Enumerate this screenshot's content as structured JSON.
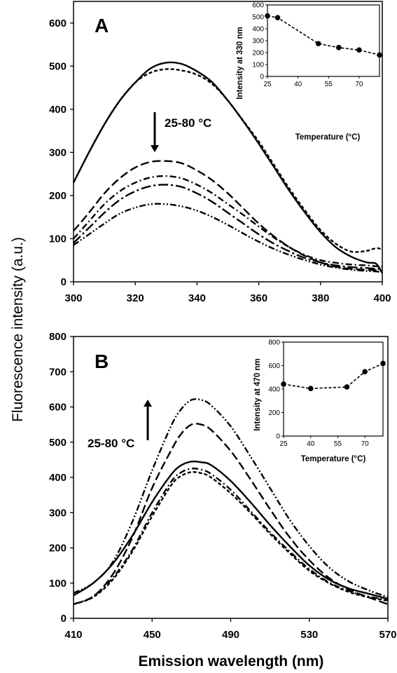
{
  "figure": {
    "ylabel": "Fluorescence intensity (a.u.)",
    "xlabel": "Emission wavelength (nm)"
  },
  "chart_data": [
    {
      "type": "line",
      "panel": "A",
      "annotation": "25-80 °C",
      "arrow_direction": "down",
      "xlim": [
        300,
        400
      ],
      "ylim": [
        0,
        650
      ],
      "xticks": [
        300,
        320,
        340,
        360,
        380,
        400
      ],
      "yticks": [
        0,
        100,
        200,
        300,
        400,
        500,
        600
      ],
      "series": [
        {
          "style": "solid",
          "x": [
            300,
            305,
            310,
            315,
            320,
            325,
            330,
            335,
            340,
            345,
            350,
            355,
            360,
            365,
            370,
            375,
            380,
            385,
            390,
            395,
            398,
            400
          ],
          "values": [
            230,
            300,
            365,
            420,
            462,
            495,
            508,
            505,
            488,
            462,
            420,
            372,
            320,
            265,
            210,
            160,
            115,
            80,
            58,
            45,
            42,
            20
          ]
        },
        {
          "style": "short-dash",
          "x": [
            300,
            305,
            310,
            315,
            320,
            325,
            330,
            335,
            340,
            345,
            350,
            355,
            360,
            365,
            370,
            375,
            380,
            385,
            390,
            395,
            398,
            400
          ],
          "values": [
            230,
            300,
            365,
            420,
            462,
            485,
            493,
            490,
            480,
            458,
            420,
            373,
            325,
            270,
            215,
            165,
            120,
            88,
            70,
            72,
            78,
            75
          ]
        },
        {
          "style": "long-dash",
          "x": [
            300,
            305,
            310,
            315,
            320,
            325,
            330,
            335,
            340,
            345,
            350,
            355,
            360,
            365,
            370,
            375,
            380,
            385,
            390,
            395,
            398,
            400
          ],
          "values": [
            118,
            160,
            205,
            240,
            265,
            278,
            280,
            275,
            258,
            235,
            205,
            170,
            135,
            105,
            80,
            60,
            45,
            35,
            30,
            28,
            27,
            25
          ]
        },
        {
          "style": "dash-dot",
          "x": [
            300,
            305,
            310,
            315,
            320,
            325,
            330,
            335,
            340,
            345,
            350,
            355,
            360,
            365,
            370,
            375,
            380,
            385,
            390,
            395,
            398,
            400
          ],
          "values": [
            100,
            140,
            180,
            210,
            230,
            242,
            245,
            240,
            225,
            205,
            180,
            155,
            128,
            102,
            80,
            62,
            50,
            44,
            40,
            38,
            36,
            35
          ]
        },
        {
          "style": "long-dash-dot",
          "x": [
            300,
            305,
            310,
            315,
            320,
            325,
            330,
            335,
            340,
            345,
            350,
            355,
            360,
            365,
            370,
            375,
            380,
            385,
            390,
            395,
            398,
            400
          ],
          "values": [
            90,
            125,
            160,
            190,
            210,
            222,
            225,
            220,
            205,
            185,
            160,
            135,
            110,
            88,
            70,
            55,
            45,
            38,
            34,
            32,
            30,
            30
          ]
        },
        {
          "style": "dash-dot-dot",
          "x": [
            300,
            305,
            310,
            315,
            320,
            325,
            330,
            335,
            340,
            345,
            350,
            355,
            360,
            365,
            370,
            375,
            380,
            385,
            390,
            395,
            398,
            400
          ],
          "values": [
            85,
            110,
            135,
            158,
            172,
            180,
            180,
            175,
            165,
            150,
            132,
            112,
            93,
            76,
            62,
            50,
            40,
            33,
            28,
            25,
            24,
            22
          ]
        }
      ],
      "inset": {
        "type": "line",
        "ylabel": "Intensity at 330 nm",
        "xlabel": "Temperature (°C)",
        "xlim": [
          25,
          80
        ],
        "ylim": [
          0,
          600
        ],
        "xticks": [
          25,
          40,
          55,
          70
        ],
        "yticks": [
          0,
          100,
          200,
          300,
          400,
          500,
          600
        ],
        "x": [
          25,
          30,
          50,
          60,
          70,
          80
        ],
        "values": [
          508,
          493,
          275,
          242,
          222,
          180
        ]
      }
    },
    {
      "type": "line",
      "panel": "B",
      "annotation": "25-80 °C",
      "arrow_direction": "up",
      "xlim": [
        410,
        570
      ],
      "ylim": [
        0,
        800
      ],
      "xticks": [
        410,
        450,
        490,
        530,
        570
      ],
      "yticks": [
        0,
        100,
        200,
        300,
        400,
        500,
        600,
        700,
        800
      ],
      "series": [
        {
          "style": "solid",
          "x": [
            410,
            420,
            430,
            440,
            450,
            460,
            465,
            470,
            475,
            480,
            490,
            500,
            510,
            520,
            530,
            540,
            550,
            560,
            570
          ],
          "values": [
            65,
            100,
            155,
            235,
            330,
            410,
            435,
            445,
            443,
            435,
            390,
            330,
            265,
            205,
            150,
            110,
            85,
            70,
            55
          ]
        },
        {
          "style": "short-dash",
          "x": [
            410,
            420,
            430,
            440,
            450,
            460,
            465,
            470,
            475,
            480,
            490,
            500,
            510,
            520,
            530,
            540,
            550,
            560,
            570
          ],
          "values": [
            40,
            60,
            110,
            190,
            290,
            380,
            405,
            415,
            412,
            400,
            355,
            300,
            240,
            185,
            135,
            100,
            75,
            60,
            50
          ]
        },
        {
          "style": "dash-dot",
          "x": [
            410,
            420,
            430,
            440,
            450,
            460,
            465,
            470,
            475,
            480,
            490,
            500,
            510,
            520,
            530,
            540,
            550,
            560,
            570
          ],
          "values": [
            40,
            62,
            115,
            195,
            300,
            390,
            415,
            425,
            422,
            410,
            365,
            305,
            245,
            190,
            140,
            102,
            78,
            62,
            52
          ]
        },
        {
          "style": "long-dash",
          "x": [
            410,
            420,
            430,
            440,
            450,
            460,
            465,
            470,
            475,
            480,
            490,
            500,
            510,
            520,
            530,
            540,
            550,
            560,
            570
          ],
          "values": [
            40,
            62,
            125,
            230,
            370,
            480,
            525,
            550,
            550,
            535,
            475,
            395,
            310,
            230,
            165,
            115,
            82,
            60,
            40
          ]
        },
        {
          "style": "dash-dot-dot",
          "x": [
            410,
            420,
            430,
            440,
            450,
            460,
            465,
            470,
            475,
            480,
            490,
            500,
            510,
            520,
            530,
            540,
            550,
            560,
            570
          ],
          "values": [
            72,
            100,
            160,
            275,
            420,
            550,
            595,
            620,
            620,
            605,
            545,
            460,
            370,
            280,
            205,
            145,
            105,
            80,
            60
          ]
        }
      ],
      "inset": {
        "type": "line",
        "ylabel": "Intensity at 470 nm",
        "xlabel": "Temperature (°C)",
        "xlim": [
          25,
          80
        ],
        "ylim": [
          0,
          800
        ],
        "xticks": [
          25,
          40,
          55,
          70
        ],
        "yticks": [
          0,
          200,
          400,
          600,
          800
        ],
        "x": [
          25,
          40,
          60,
          70,
          80
        ],
        "values": [
          442,
          405,
          418,
          548,
          618
        ]
      }
    }
  ]
}
